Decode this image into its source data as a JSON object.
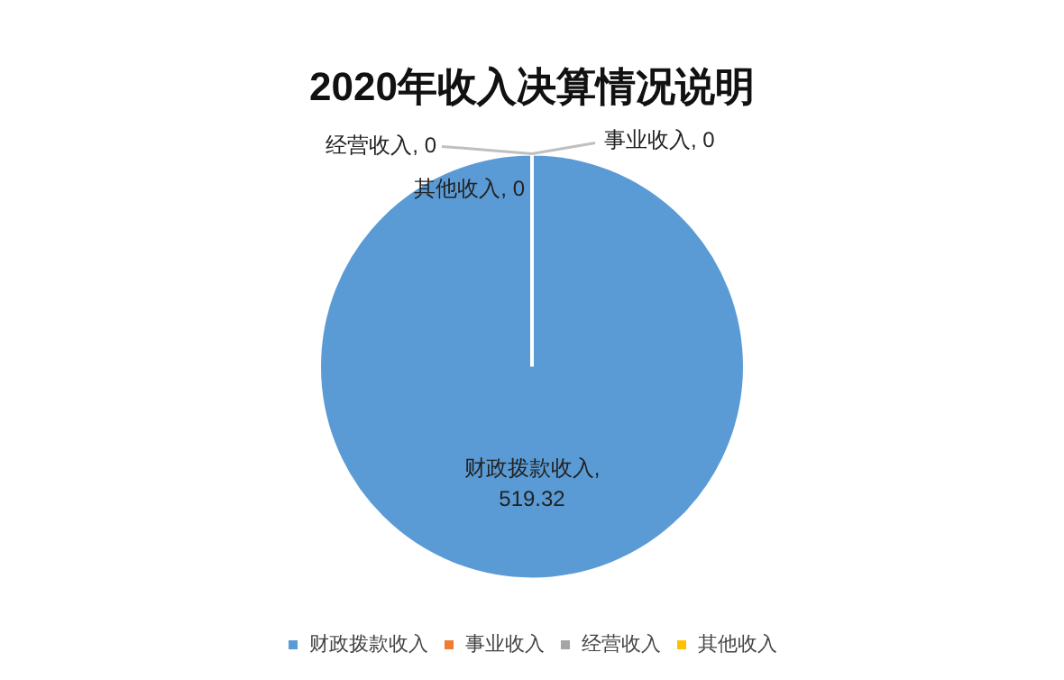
{
  "chart_data": {
    "type": "pie",
    "title": "2020年收入决算情况说明",
    "categories": [
      "财政拨款收入",
      "事业收入",
      "经营收入",
      "其他收入"
    ],
    "values": [
      519.32,
      0,
      0,
      0
    ],
    "colors": [
      "#5b9bd5",
      "#ed7d31",
      "#a5a5a5",
      "#ffc000"
    ],
    "value_labels": [
      "财政拨款收入, 519.32",
      "事业收入, 0",
      "经营收入, 0",
      "其他收入, 0"
    ],
    "legend": "bottom"
  }
}
